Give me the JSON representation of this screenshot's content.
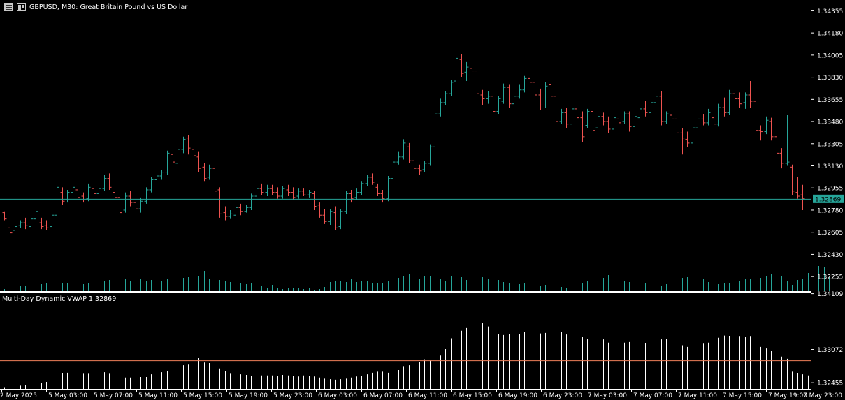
{
  "header": {
    "symbol_line": "GBPUSD, M30:  Great Britain Pound vs US Dollar",
    "menu_icon": "chart-menu-icon",
    "window_icon": "chart-window-icon"
  },
  "indicator": {
    "label": "Multi-Day Dynamic VWAP 1.32869"
  },
  "price_axis": {
    "ticks": [
      "1.34355",
      "1.34180",
      "1.34005",
      "1.33830",
      "1.33655",
      "1.33480",
      "1.33305",
      "1.33130",
      "1.32955",
      "1.32780",
      "1.32605",
      "1.32430",
      "1.32255"
    ],
    "current_price": "1.32869"
  },
  "indicator_axis": {
    "ticks": [
      "1.34109",
      "1.33072",
      "1.32455"
    ]
  },
  "time_axis": {
    "labels": [
      "2 May 2025",
      "5 May 03:00",
      "5 May 07:00",
      "5 May 11:00",
      "5 May 15:00",
      "5 May 19:00",
      "5 May 23:00",
      "6 May 03:00",
      "6 May 07:00",
      "6 May 11:00",
      "6 May 15:00",
      "6 May 19:00",
      "6 May 23:00",
      "7 May 03:00",
      "7 May 07:00",
      "7 May 11:00",
      "7 May 15:00",
      "7 May 19:00",
      "7 May 23:00"
    ]
  },
  "colors": {
    "background": "#000000",
    "bull": "#26a69a",
    "bear": "#ef5350",
    "price_line": "#26a69a",
    "vwap_line": "#ef7f5a",
    "axis": "#ffffff",
    "hist": "#ffffff"
  },
  "chart_data": {
    "type": "ohlc",
    "symbol": "GBPUSD",
    "timeframe": "M30",
    "ylim": [
      1.3214,
      1.3444
    ],
    "ohlc": [
      [
        1.3276,
        1.3277,
        1.327,
        1.3271
      ],
      [
        1.3264,
        1.3266,
        1.3259,
        1.326
      ],
      [
        1.3262,
        1.3268,
        1.3261,
        1.3265
      ],
      [
        1.3266,
        1.327,
        1.3264,
        1.3268
      ],
      [
        1.3268,
        1.3272,
        1.3263,
        1.3266
      ],
      [
        1.3265,
        1.3273,
        1.3262,
        1.3271
      ],
      [
        1.3271,
        1.3278,
        1.327,
        1.3277
      ],
      [
        1.3268,
        1.3272,
        1.3263,
        1.3265
      ],
      [
        1.3266,
        1.327,
        1.3262,
        1.3264
      ],
      [
        1.3265,
        1.3276,
        1.3263,
        1.3274
      ],
      [
        1.3274,
        1.3298,
        1.3272,
        1.3296
      ],
      [
        1.3292,
        1.3296,
        1.3282,
        1.3285
      ],
      [
        1.3286,
        1.3294,
        1.3284,
        1.3292
      ],
      [
        1.3292,
        1.3301,
        1.329,
        1.3296
      ],
      [
        1.3294,
        1.3297,
        1.3285,
        1.3288
      ],
      [
        1.3289,
        1.3292,
        1.3284,
        1.3286
      ],
      [
        1.3287,
        1.3299,
        1.3285,
        1.3296
      ],
      [
        1.3295,
        1.3298,
        1.3288,
        1.3291
      ],
      [
        1.3291,
        1.3297,
        1.3289,
        1.3295
      ],
      [
        1.3295,
        1.3306,
        1.3293,
        1.3303
      ],
      [
        1.3303,
        1.3307,
        1.3294,
        1.3296
      ],
      [
        1.3292,
        1.3296,
        1.3285,
        1.3288
      ],
      [
        1.3288,
        1.3292,
        1.3273,
        1.3276
      ],
      [
        1.3278,
        1.3292,
        1.3276,
        1.3289
      ],
      [
        1.3289,
        1.3293,
        1.3281,
        1.3284
      ],
      [
        1.3284,
        1.329,
        1.3277,
        1.3279
      ],
      [
        1.3279,
        1.3288,
        1.3276,
        1.3285
      ],
      [
        1.3285,
        1.3296,
        1.3283,
        1.3294
      ],
      [
        1.3294,
        1.3304,
        1.3292,
        1.3302
      ],
      [
        1.3302,
        1.3308,
        1.3298,
        1.3305
      ],
      [
        1.3305,
        1.331,
        1.3302,
        1.3308
      ],
      [
        1.3308,
        1.3325,
        1.3306,
        1.3323
      ],
      [
        1.3322,
        1.3326,
        1.3312,
        1.3316
      ],
      [
        1.3315,
        1.3328,
        1.3313,
        1.3326
      ],
      [
        1.3326,
        1.3336,
        1.3323,
        1.3334
      ],
      [
        1.3335,
        1.3337,
        1.3322,
        1.3327
      ],
      [
        1.3326,
        1.333,
        1.3318,
        1.3321
      ],
      [
        1.332,
        1.3324,
        1.3308,
        1.3311
      ],
      [
        1.3312,
        1.3315,
        1.3301,
        1.3303
      ],
      [
        1.3304,
        1.3314,
        1.3302,
        1.3311
      ],
      [
        1.3311,
        1.3313,
        1.329,
        1.3293
      ],
      [
        1.3294,
        1.3296,
        1.3272,
        1.3275
      ],
      [
        1.3276,
        1.3281,
        1.327,
        1.3273
      ],
      [
        1.3273,
        1.3278,
        1.3271,
        1.3275
      ],
      [
        1.3274,
        1.3283,
        1.3272,
        1.328
      ],
      [
        1.328,
        1.3283,
        1.3274,
        1.3277
      ],
      [
        1.3277,
        1.3282,
        1.3276,
        1.328
      ],
      [
        1.328,
        1.3291,
        1.3278,
        1.3289
      ],
      [
        1.3289,
        1.3297,
        1.3288,
        1.3295
      ],
      [
        1.3295,
        1.3299,
        1.329,
        1.3292
      ],
      [
        1.3292,
        1.3298,
        1.3289,
        1.3295
      ],
      [
        1.3295,
        1.3298,
        1.329,
        1.3292
      ],
      [
        1.3292,
        1.3296,
        1.3287,
        1.3289
      ],
      [
        1.3289,
        1.3297,
        1.3287,
        1.3295
      ],
      [
        1.3294,
        1.3298,
        1.3289,
        1.3292
      ],
      [
        1.3292,
        1.3296,
        1.3286,
        1.3288
      ],
      [
        1.3289,
        1.3295,
        1.3287,
        1.3293
      ],
      [
        1.3293,
        1.3295,
        1.3289,
        1.329
      ],
      [
        1.329,
        1.3294,
        1.3288,
        1.3292
      ],
      [
        1.3291,
        1.3293,
        1.3278,
        1.3281
      ],
      [
        1.3282,
        1.3284,
        1.3272,
        1.3274
      ],
      [
        1.3274,
        1.3279,
        1.3267,
        1.3269
      ],
      [
        1.3269,
        1.3279,
        1.3266,
        1.3277
      ],
      [
        1.3276,
        1.3281,
        1.3262,
        1.3264
      ],
      [
        1.3265,
        1.3279,
        1.3263,
        1.3277
      ],
      [
        1.3277,
        1.3293,
        1.3275,
        1.3291
      ],
      [
        1.3291,
        1.3294,
        1.3284,
        1.3287
      ],
      [
        1.3288,
        1.3295,
        1.3286,
        1.3292
      ],
      [
        1.3292,
        1.3301,
        1.329,
        1.3299
      ],
      [
        1.3299,
        1.3306,
        1.3297,
        1.3304
      ],
      [
        1.3304,
        1.3307,
        1.3298,
        1.33
      ],
      [
        1.3296,
        1.3299,
        1.3289,
        1.3291
      ],
      [
        1.3291,
        1.3294,
        1.3284,
        1.3287
      ],
      [
        1.3287,
        1.3305,
        1.3285,
        1.3303
      ],
      [
        1.3303,
        1.3318,
        1.3301,
        1.3316
      ],
      [
        1.3316,
        1.3324,
        1.3314,
        1.332
      ],
      [
        1.332,
        1.3334,
        1.3318,
        1.3331
      ],
      [
        1.3328,
        1.3331,
        1.3315,
        1.3317
      ],
      [
        1.3317,
        1.332,
        1.3308,
        1.3311
      ],
      [
        1.3311,
        1.3314,
        1.3306,
        1.3309
      ],
      [
        1.331,
        1.3317,
        1.3308,
        1.3315
      ],
      [
        1.3315,
        1.333,
        1.3313,
        1.3328
      ],
      [
        1.3328,
        1.3356,
        1.3326,
        1.3354
      ],
      [
        1.3354,
        1.3366,
        1.3352,
        1.3363
      ],
      [
        1.3363,
        1.3372,
        1.3361,
        1.337
      ],
      [
        1.337,
        1.3381,
        1.3368,
        1.3379
      ],
      [
        1.338,
        1.3406,
        1.3378,
        1.3398
      ],
      [
        1.3397,
        1.3401,
        1.3383,
        1.3386
      ],
      [
        1.3387,
        1.3395,
        1.338,
        1.3391
      ],
      [
        1.339,
        1.3399,
        1.3383,
        1.3388
      ],
      [
        1.3388,
        1.34,
        1.3368,
        1.337
      ],
      [
        1.3369,
        1.3373,
        1.3361,
        1.3366
      ],
      [
        1.3366,
        1.3372,
        1.3362,
        1.3368
      ],
      [
        1.3368,
        1.3371,
        1.3352,
        1.3356
      ],
      [
        1.3356,
        1.3368,
        1.3354,
        1.3366
      ],
      [
        1.3364,
        1.3378,
        1.3362,
        1.3375
      ],
      [
        1.3375,
        1.3377,
        1.3359,
        1.3362
      ],
      [
        1.3362,
        1.3371,
        1.336,
        1.3368
      ],
      [
        1.3368,
        1.3377,
        1.3366,
        1.3373
      ],
      [
        1.3373,
        1.3384,
        1.3371,
        1.3382
      ],
      [
        1.3382,
        1.3388,
        1.3376,
        1.3379
      ],
      [
        1.3379,
        1.3385,
        1.3366,
        1.3369
      ],
      [
        1.3369,
        1.3374,
        1.3357,
        1.3361
      ],
      [
        1.3361,
        1.3379,
        1.3359,
        1.3376
      ],
      [
        1.3377,
        1.3382,
        1.3365,
        1.3368
      ],
      [
        1.3368,
        1.3372,
        1.3345,
        1.3348
      ],
      [
        1.3348,
        1.3358,
        1.3346,
        1.3355
      ],
      [
        1.3355,
        1.3359,
        1.3343,
        1.3346
      ],
      [
        1.3346,
        1.3361,
        1.3344,
        1.3358
      ],
      [
        1.3358,
        1.3361,
        1.3348,
        1.3351
      ],
      [
        1.3351,
        1.3356,
        1.3332,
        1.3336
      ],
      [
        1.3345,
        1.3358,
        1.3343,
        1.3356
      ],
      [
        1.3356,
        1.3362,
        1.3338,
        1.3341
      ],
      [
        1.3343,
        1.3357,
        1.3341,
        1.3352
      ],
      [
        1.3352,
        1.3355,
        1.3345,
        1.3348
      ],
      [
        1.3348,
        1.3352,
        1.3339,
        1.3342
      ],
      [
        1.3342,
        1.3353,
        1.334,
        1.3351
      ],
      [
        1.335,
        1.3353,
        1.3345,
        1.3347
      ],
      [
        1.3348,
        1.3356,
        1.3346,
        1.3354
      ],
      [
        1.3354,
        1.3356,
        1.334,
        1.3344
      ],
      [
        1.3344,
        1.3354,
        1.3342,
        1.3352
      ],
      [
        1.3351,
        1.3361,
        1.3349,
        1.3358
      ],
      [
        1.3358,
        1.3364,
        1.3352,
        1.3355
      ],
      [
        1.3355,
        1.3366,
        1.3353,
        1.3363
      ],
      [
        1.3363,
        1.337,
        1.3359,
        1.3368
      ],
      [
        1.3368,
        1.3372,
        1.3345,
        1.3348
      ],
      [
        1.3348,
        1.3356,
        1.3346,
        1.3354
      ],
      [
        1.3353,
        1.336,
        1.3347,
        1.335
      ],
      [
        1.335,
        1.3359,
        1.3336,
        1.3339
      ],
      [
        1.3339,
        1.3343,
        1.3322,
        1.3335
      ],
      [
        1.3334,
        1.334,
        1.3328,
        1.3331
      ],
      [
        1.3331,
        1.3345,
        1.3329,
        1.3343
      ],
      [
        1.3343,
        1.3353,
        1.3341,
        1.335
      ],
      [
        1.335,
        1.3354,
        1.3345,
        1.3347
      ],
      [
        1.3347,
        1.3358,
        1.3345,
        1.3355
      ],
      [
        1.3351,
        1.3354,
        1.3344,
        1.3346
      ],
      [
        1.3346,
        1.3362,
        1.3344,
        1.3359
      ],
      [
        1.3359,
        1.3367,
        1.3352,
        1.3355
      ],
      [
        1.3355,
        1.3373,
        1.3353,
        1.337
      ],
      [
        1.337,
        1.3374,
        1.3362,
        1.3366
      ],
      [
        1.3366,
        1.3371,
        1.3359,
        1.3362
      ],
      [
        1.3363,
        1.3371,
        1.3358,
        1.3369
      ],
      [
        1.3369,
        1.338,
        1.3359,
        1.3364
      ],
      [
        1.3364,
        1.3367,
        1.3338,
        1.3341
      ],
      [
        1.3341,
        1.3345,
        1.3333,
        1.334
      ],
      [
        1.334,
        1.3352,
        1.3338,
        1.3349
      ],
      [
        1.3348,
        1.3351,
        1.3333,
        1.3336
      ],
      [
        1.3336,
        1.3339,
        1.332,
        1.3323
      ],
      [
        1.3323,
        1.3327,
        1.3311,
        1.3315
      ],
      [
        1.3315,
        1.3353,
        1.3313,
        1.3316
      ],
      [
        1.3312,
        1.3314,
        1.329,
        1.3293
      ],
      [
        1.3292,
        1.3304,
        1.3287,
        1.3289
      ],
      [
        1.329,
        1.3298,
        1.3278,
        1.3287
      ]
    ],
    "volume": [
      3,
      3,
      6,
      7,
      8,
      9,
      8,
      10,
      11,
      13,
      14,
      12,
      11,
      12,
      13,
      10,
      11,
      12,
      12,
      14,
      16,
      13,
      17,
      18,
      14,
      16,
      17,
      15,
      16,
      15,
      14,
      17,
      16,
      18,
      19,
      20,
      23,
      22,
      29,
      18,
      20,
      16,
      14,
      13,
      14,
      12,
      10,
      12,
      8,
      7,
      5,
      9,
      5,
      3,
      4,
      5,
      4,
      3,
      4,
      2,
      3,
      6,
      13,
      15,
      14,
      13,
      17,
      13,
      14,
      14,
      12,
      11,
      12,
      14,
      17,
      19,
      22,
      25,
      24,
      18,
      22,
      21,
      18,
      17,
      15,
      21,
      19,
      20,
      16,
      24,
      23,
      20,
      17,
      15,
      16,
      13,
      12,
      11,
      10,
      12,
      10,
      8,
      7,
      9,
      7,
      8,
      6,
      5,
      20,
      17,
      12,
      14,
      11,
      8,
      19,
      23,
      22,
      16,
      14,
      13,
      11,
      14,
      12,
      14,
      9,
      8,
      10,
      15,
      18,
      19,
      20,
      23,
      22,
      18,
      13,
      12,
      10,
      11,
      12,
      13,
      15,
      17,
      18,
      19,
      19,
      22,
      24,
      22,
      22,
      14,
      9,
      16,
      17,
      26,
      38,
      36,
      34,
      20
    ],
    "vwap_hist": [
      1.3236,
      1.3238,
      1.3239,
      1.324,
      1.3241,
      1.3242,
      1.3244,
      1.3245,
      1.3247,
      1.325,
      1.3262,
      1.3263,
      1.3264,
      1.3264,
      1.3263,
      1.3262,
      1.3262,
      1.3263,
      1.3263,
      1.3265,
      1.3262,
      1.3258,
      1.3257,
      1.3255,
      1.3255,
      1.3256,
      1.3256,
      1.3256,
      1.3261,
      1.3263,
      1.3265,
      1.3267,
      1.327,
      1.3276,
      1.3278,
      1.3279,
      1.3286,
      1.3291,
      1.3283,
      1.3282,
      1.3276,
      1.3272,
      1.3267,
      1.3262,
      1.3262,
      1.3261,
      1.326,
      1.3258,
      1.3259,
      1.3259,
      1.3259,
      1.3259,
      1.3258,
      1.326,
      1.3259,
      1.3258,
      1.3257,
      1.3259,
      1.3258,
      1.3257,
      1.3255,
      1.3253,
      1.3252,
      1.3251,
      1.3252,
      1.3253,
      1.3255,
      1.3257,
      1.3258,
      1.3261,
      1.3264,
      1.3266,
      1.3266,
      1.3264,
      1.3264,
      1.3269,
      1.3275,
      1.3278,
      1.328,
      1.3284,
      1.3289,
      1.3287,
      1.3292,
      1.3296,
      1.3308,
      1.3328,
      1.3335,
      1.3342,
      1.3347,
      1.3352,
      1.336,
      1.3356,
      1.335,
      1.3342,
      1.3336,
      1.3334,
      1.3336,
      1.3338,
      1.3336,
      1.334,
      1.3342,
      1.3339,
      1.3337,
      1.3338,
      1.3339,
      1.3338,
      1.334,
      1.3335,
      1.3331,
      1.333,
      1.333,
      1.3327,
      1.3325,
      1.3323,
      1.3326,
      1.332,
      1.3324,
      1.3323,
      1.332,
      1.3321,
      1.3318,
      1.3318,
      1.3319,
      1.3322,
      1.3324,
      1.3326,
      1.3327,
      1.3324,
      1.3319,
      1.3315,
      1.3312,
      1.3313,
      1.3316,
      1.3318,
      1.332,
      1.3324,
      1.3329,
      1.3333,
      1.3332,
      1.3333,
      1.3331,
      1.333,
      1.3331,
      1.3318,
      1.3312,
      1.3309,
      1.3304,
      1.33,
      1.3294,
      1.329,
      1.3266,
      1.3263,
      1.3261,
      1.3259
    ],
    "vwap_level": 1.3287,
    "indicator_ylim": [
      1.3234,
      1.3413
    ]
  }
}
